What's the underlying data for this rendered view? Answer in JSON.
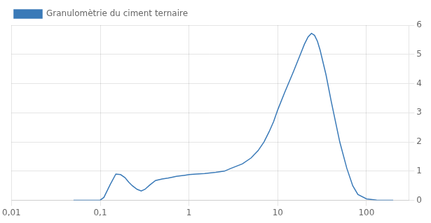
{
  "chart_data": {
    "type": "line",
    "x": [
      0.05,
      0.08,
      0.1,
      0.11,
      0.13,
      0.15,
      0.17,
      0.19,
      0.21,
      0.23,
      0.26,
      0.29,
      0.32,
      0.36,
      0.42,
      0.5,
      0.58,
      0.65,
      0.72,
      0.8,
      0.9,
      1.0,
      1.2,
      1.5,
      2.0,
      2.5,
      3.0,
      4.0,
      5.0,
      6.0,
      7.0,
      8.0,
      9.0,
      10.0,
      12.0,
      15.0,
      18.0,
      20.0,
      22.0,
      24.0,
      26.0,
      28.0,
      30.0,
      35.0,
      40.0,
      50.0,
      60.0,
      70.0,
      80.0,
      100.0,
      130.0,
      200.0
    ],
    "series": [
      {
        "name": "Granulomètrie du ciment ternaire",
        "color": "#3a7ab8",
        "values": [
          0.0,
          0.0,
          0.01,
          0.1,
          0.55,
          0.9,
          0.88,
          0.78,
          0.62,
          0.5,
          0.38,
          0.32,
          0.38,
          0.52,
          0.68,
          0.73,
          0.76,
          0.79,
          0.82,
          0.84,
          0.86,
          0.88,
          0.9,
          0.92,
          0.96,
          1.0,
          1.1,
          1.25,
          1.45,
          1.7,
          2.0,
          2.35,
          2.7,
          3.1,
          3.7,
          4.4,
          5.0,
          5.35,
          5.6,
          5.72,
          5.65,
          5.45,
          5.15,
          4.3,
          3.4,
          2.0,
          1.1,
          0.5,
          0.2,
          0.05,
          0.01,
          0.0
        ]
      }
    ],
    "log": "x",
    "xlim": [
      0.01,
      300
    ],
    "xticks": [
      {
        "value": 0.01,
        "label": "0,01"
      },
      {
        "value": 0.1,
        "label": "0,1"
      },
      1,
      10,
      100
    ],
    "ylim": [
      0,
      6
    ],
    "yticks": [
      0,
      1,
      2,
      3,
      4,
      5,
      6
    ],
    "grid": true,
    "legend": "upper left"
  }
}
